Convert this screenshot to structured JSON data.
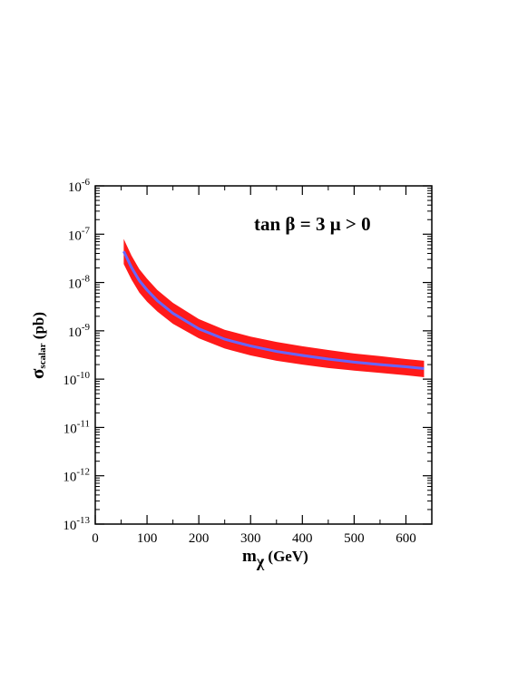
{
  "chart_data": {
    "type": "area",
    "xlabel": {
      "main": "m",
      "sub": "χ",
      "unit": " (GeV)"
    },
    "ylabel": {
      "main": "σ",
      "sub": "scalar",
      "unit": " (pb)"
    },
    "annotation": "tan β = 3  μ > 0",
    "xlim": [
      0,
      650
    ],
    "ylim": [
      1e-13,
      1e-06
    ],
    "yscale": "log",
    "x_ticks": [
      "0",
      "100",
      "200",
      "300",
      "400",
      "500",
      "600"
    ],
    "y_ticks": [
      {
        "base": "10",
        "exp": "-13"
      },
      {
        "base": "10",
        "exp": "-12"
      },
      {
        "base": "10",
        "exp": "-11"
      },
      {
        "base": "10",
        "exp": "-10"
      },
      {
        "base": "10",
        "exp": "-9"
      },
      {
        "base": "10",
        "exp": "-8"
      },
      {
        "base": "10",
        "exp": "-7"
      },
      {
        "base": "10",
        "exp": "-6"
      }
    ],
    "band": {
      "color": "#ff1a1a",
      "x": [
        55,
        70,
        85,
        100,
        120,
        150,
        200,
        250,
        300,
        350,
        400,
        450,
        500,
        550,
        600,
        635
      ],
      "upper": [
        8e-08,
        3.6e-08,
        1.9e-08,
        1.2e-08,
        7e-09,
        3.8e-09,
        1.75e-09,
        1.05e-09,
        7.6e-10,
        5.9e-10,
        4.8e-10,
        4e-10,
        3.4e-10,
        3e-10,
        2.6e-10,
        2.4e-10
      ],
      "lower": [
        2.4e-08,
        1.15e-08,
        6.2e-09,
        4e-09,
        2.5e-09,
        1.4e-09,
        7e-10,
        4.3e-10,
        3.1e-10,
        2.4e-10,
        2e-10,
        1.7e-10,
        1.5e-10,
        1.35e-10,
        1.2e-10,
        1.1e-10
      ]
    },
    "central": {
      "color": "#6666ff",
      "x": [
        55,
        70,
        85,
        100,
        120,
        150,
        200,
        250,
        300,
        350,
        400,
        450,
        500,
        550,
        600,
        635
      ],
      "values": [
        4.4e-08,
        2.05e-08,
        1.1e-08,
        7e-09,
        4.2e-09,
        2.3e-09,
        1.1e-09,
        6.7e-10,
        4.85e-10,
        3.75e-10,
        3.1e-10,
        2.6e-10,
        2.25e-10,
        2e-10,
        1.8e-10,
        1.65e-10
      ]
    }
  }
}
